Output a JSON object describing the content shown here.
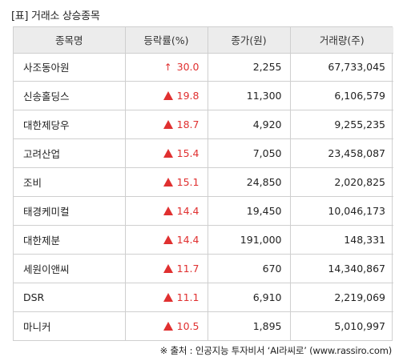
{
  "title": "[표] 거래소 상승종목",
  "headers": [
    "종목명",
    "등락률(%)",
    "종가(원)",
    "거래량(주)"
  ],
  "rows": [
    {
      "name": "사조동아원",
      "marker": "arrow",
      "rate": "30.0",
      "close": "2,255",
      "volume": "67,733,045"
    },
    {
      "name": "신송홀딩스",
      "marker": "triangle",
      "rate": "19.8",
      "close": "11,300",
      "volume": "6,106,579"
    },
    {
      "name": "대한제당우",
      "marker": "triangle",
      "rate": "18.7",
      "close": "4,920",
      "volume": "9,255,235"
    },
    {
      "name": "고려산업",
      "marker": "triangle",
      "rate": "15.4",
      "close": "7,050",
      "volume": "23,458,087"
    },
    {
      "name": "조비",
      "marker": "triangle",
      "rate": "15.1",
      "close": "24,850",
      "volume": "2,020,825"
    },
    {
      "name": "태경케미컬",
      "marker": "triangle",
      "rate": "14.4",
      "close": "19,450",
      "volume": "10,046,173"
    },
    {
      "name": "대한제분",
      "marker": "triangle",
      "rate": "14.4",
      "close": "191,000",
      "volume": "148,331"
    },
    {
      "name": "세원이앤씨",
      "marker": "triangle",
      "rate": "11.7",
      "close": "670",
      "volume": "14,340,867"
    },
    {
      "name": "DSR",
      "marker": "triangle",
      "rate": "11.1",
      "close": "6,910",
      "volume": "2,219,069"
    },
    {
      "name": "마니커",
      "marker": "triangle",
      "rate": "10.5",
      "close": "1,895",
      "volume": "5,010,997"
    }
  ],
  "footer": "※ 출처 : 인공지능 투자비서 ‘AI라씨로’ (www.rassiro.com)",
  "colors": {
    "up": "#e03030",
    "header_bg": "#ececec",
    "border": "#cfcfcf"
  },
  "icons": {
    "arrow": "up-arrow-icon",
    "triangle": "up-triangle-icon"
  }
}
